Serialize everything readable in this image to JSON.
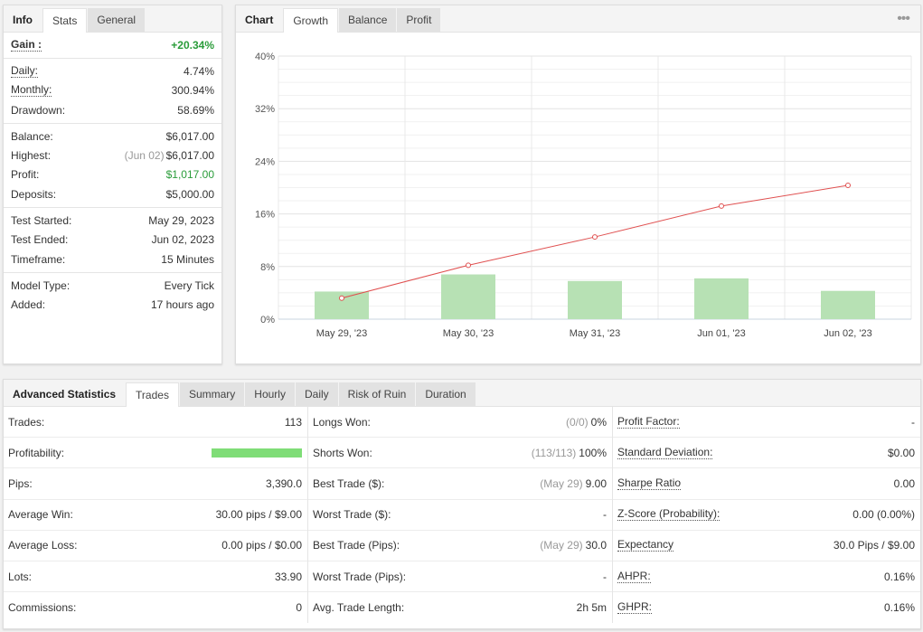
{
  "info_panel": {
    "tabs": [
      {
        "label": "Info",
        "active": false,
        "lead": true
      },
      {
        "label": "Stats",
        "active": true
      },
      {
        "label": "General",
        "active": false
      }
    ],
    "groups": [
      [
        {
          "label": "Gain :",
          "value": "+20.34%",
          "underline": true,
          "bold": true,
          "green": true
        }
      ],
      [
        {
          "label": "Daily:",
          "value": "4.74%",
          "underline": true
        },
        {
          "label": "Monthly:",
          "value": "300.94%",
          "underline": true
        },
        {
          "label": "Drawdown:",
          "value": "58.69%"
        }
      ],
      [
        {
          "label": "Balance:",
          "value": "$6,017.00"
        },
        {
          "label": "Highest:",
          "sub": "(Jun 02)",
          "value": "$6,017.00"
        },
        {
          "label": "Profit:",
          "value": "$1,017.00",
          "green": true
        },
        {
          "label": "Deposits:",
          "value": "$5,000.00"
        }
      ],
      [
        {
          "label": "Test Started:",
          "value": "May 29, 2023"
        },
        {
          "label": "Test Ended:",
          "value": "Jun 02, 2023"
        },
        {
          "label": "Timeframe:",
          "value": "15 Minutes"
        }
      ],
      [
        {
          "label": "Model Type:",
          "value": "Every Tick"
        },
        {
          "label": "Added:",
          "value": "17 hours ago"
        }
      ]
    ]
  },
  "chart_panel": {
    "tabs": [
      {
        "label": "Chart",
        "active": false,
        "lead": true
      },
      {
        "label": "Growth",
        "active": true
      },
      {
        "label": "Balance",
        "active": false
      },
      {
        "label": "Profit",
        "active": false
      }
    ],
    "menu_icon": "more-dots-icon"
  },
  "chart_data": {
    "type": "bar",
    "categories": [
      "May 29, '23",
      "May 30, '23",
      "May 31, '23",
      "Jun 01, '23",
      "Jun 02, '23"
    ],
    "series": [
      {
        "type": "bar",
        "values": [
          4.2,
          6.8,
          5.8,
          6.2,
          4.3
        ],
        "color": "#b7e1b4"
      },
      {
        "type": "line",
        "values": [
          3.2,
          8.2,
          12.5,
          17.2,
          20.34
        ],
        "color": "#e05050"
      }
    ],
    "yticks": [
      "0%",
      "8%",
      "16%",
      "24%",
      "32%",
      "40%"
    ],
    "ylim": [
      0,
      40
    ],
    "grid": true
  },
  "advanced": {
    "tabs": [
      {
        "label": "Advanced Statistics",
        "active": false,
        "lead": true
      },
      {
        "label": "Trades",
        "active": true
      },
      {
        "label": "Summary",
        "active": false
      },
      {
        "label": "Hourly",
        "active": false
      },
      {
        "label": "Daily",
        "active": false
      },
      {
        "label": "Risk of Ruin",
        "active": false
      },
      {
        "label": "Duration",
        "active": false
      }
    ],
    "columns": [
      [
        {
          "label": "Trades:",
          "value": "113"
        },
        {
          "label": "Profitability:",
          "bar": 1.0
        },
        {
          "label": "Pips:",
          "value": "3,390.0"
        },
        {
          "label": "Average Win:",
          "value": "30.00 pips / $9.00"
        },
        {
          "label": "Average Loss:",
          "value": "0.00 pips / $0.00"
        },
        {
          "label": "Lots:",
          "value": "33.90"
        },
        {
          "label": "Commissions:",
          "value": "0"
        }
      ],
      [
        {
          "label": "Longs Won:",
          "sub": "(0/0)",
          "value": "0%"
        },
        {
          "label": "Shorts Won:",
          "sub": "(113/113)",
          "value": "100%"
        },
        {
          "label": "Best Trade ($):",
          "sub": "(May 29)",
          "value": "9.00"
        },
        {
          "label": "Worst Trade ($):",
          "value": "-"
        },
        {
          "label": "Best Trade (Pips):",
          "sub": "(May 29)",
          "value": "30.0"
        },
        {
          "label": "Worst Trade (Pips):",
          "value": "-"
        },
        {
          "label": "Avg. Trade Length:",
          "value": "2h 5m"
        }
      ],
      [
        {
          "label": "Profit Factor:",
          "value": "-",
          "underline": true
        },
        {
          "label": "Standard Deviation:",
          "value": "$0.00",
          "underline": true
        },
        {
          "label": "Sharpe Ratio",
          "value": "0.00",
          "underline": true
        },
        {
          "label": "Z-Score (Probability):",
          "value": "0.00 (0.00%)",
          "underline": true
        },
        {
          "label": "Expectancy",
          "value": "30.0 Pips / $9.00",
          "underline": true
        },
        {
          "label": "AHPR:",
          "value": "0.16%",
          "underline": true
        },
        {
          "label": "GHPR:",
          "value": "0.16%",
          "underline": true
        }
      ]
    ]
  }
}
